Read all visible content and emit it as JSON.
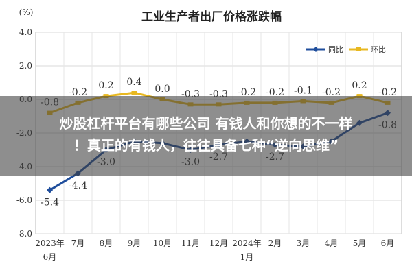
{
  "chart_data": {
    "type": "line",
    "title": "工业生产者出厂价格涨跌幅",
    "unit_label": "(%)",
    "ylim": [
      -8.0,
      4.0
    ],
    "yticks": [
      "4.0",
      "2.0",
      "0.0",
      "-2.0",
      "-4.0",
      "-6.0",
      "-8.0"
    ],
    "grid": true,
    "legend_position": "top-right",
    "categories": [
      {
        "line1": "2023年",
        "line2": "6月"
      },
      {
        "line1": "7月",
        "line2": ""
      },
      {
        "line1": "8月",
        "line2": ""
      },
      {
        "line1": "9月",
        "line2": ""
      },
      {
        "line1": "10月",
        "line2": ""
      },
      {
        "line1": "11月",
        "line2": ""
      },
      {
        "line1": "12月",
        "line2": ""
      },
      {
        "line1": "2024年",
        "line2": "1月"
      },
      {
        "line1": "2月",
        "line2": ""
      },
      {
        "line1": "3月",
        "line2": ""
      },
      {
        "line1": "4月",
        "line2": ""
      },
      {
        "line1": "5月",
        "line2": ""
      },
      {
        "line1": "6月",
        "line2": ""
      }
    ],
    "series": [
      {
        "name": "同比",
        "color": "#1f4e9c",
        "values": [
          -5.4,
          -4.4,
          -3.0,
          -2.5,
          -2.6,
          -3.0,
          -2.7,
          -2.5,
          -2.7,
          -2.8,
          -2.5,
          -1.4,
          -0.8
        ],
        "labels": [
          "-5.4",
          "-4.4",
          "-3.0",
          "",
          "",
          "-3.0",
          "-2.7",
          "",
          "-2.7",
          "",
          "",
          "",
          "-0.8"
        ]
      },
      {
        "name": "环比",
        "color": "#e8b820",
        "values": [
          -0.8,
          -0.2,
          0.2,
          0.4,
          0.0,
          -0.3,
          -0.3,
          -0.2,
          -0.2,
          -0.1,
          -0.2,
          0.2,
          -0.2
        ],
        "labels": [
          "-0.8",
          "-0.2",
          "0.2",
          "0.4",
          "0.0",
          "-0.3",
          "-0.3",
          "-0.2",
          "-0.2",
          "-0.1",
          "-0.2",
          "0.2",
          "-0.2"
        ]
      }
    ]
  },
  "banner": {
    "line1": "炒股杠杆平台有哪些公司 有钱人和你想的不一样",
    "line2": "！真正的有钱人，往往具备七种“逆向思维”"
  }
}
